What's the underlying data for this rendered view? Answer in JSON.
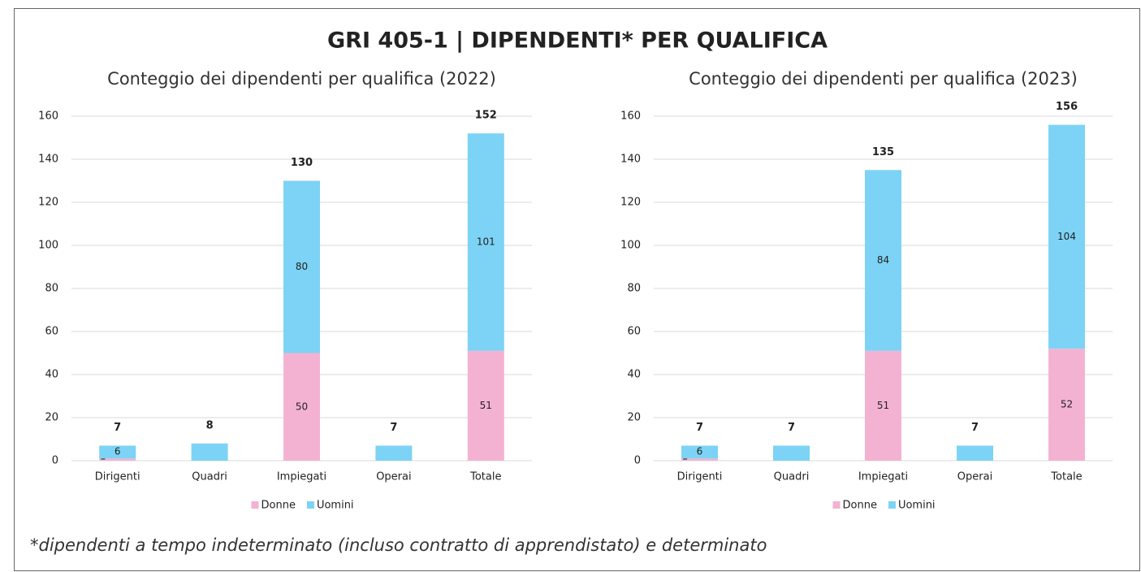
{
  "title": "GRI 405-1 | DIPENDENTI* PER QUALIFICA",
  "footnote": "*dipendenti a tempo indeterminato (incluso contratto di apprendistato) e determinato",
  "chart_data": [
    {
      "type": "bar",
      "stacked": true,
      "title": "Conteggio dei dipendenti per qualifica (2022)",
      "categories": [
        "Dirigenti",
        "Quadri",
        "Impiegati",
        "Operai",
        "Totale"
      ],
      "series": [
        {
          "name": "Donne",
          "color": "#f4b2d3",
          "values": [
            1,
            0,
            50,
            0,
            51
          ],
          "value_labels": [
            "1",
            null,
            "50",
            null,
            "51"
          ]
        },
        {
          "name": "Uomini",
          "color": "#7dd3f5",
          "values": [
            6,
            8,
            80,
            7,
            101
          ],
          "value_labels": [
            "6",
            null,
            "80",
            null,
            "101"
          ]
        }
      ],
      "totals": [
        7,
        8,
        130,
        7,
        152
      ],
      "ylim": [
        0,
        160
      ],
      "yticks": [
        0,
        20,
        40,
        60,
        80,
        100,
        120,
        140,
        160
      ],
      "grid": true,
      "legend": "bottom"
    },
    {
      "type": "bar",
      "stacked": true,
      "title": "Conteggio dei dipendenti per qualifica (2023)",
      "categories": [
        "Dirigenti",
        "Quadri",
        "Impiegati",
        "Operai",
        "Totale"
      ],
      "series": [
        {
          "name": "Donne",
          "color": "#f4b2d3",
          "values": [
            1,
            0,
            51,
            0,
            52
          ],
          "value_labels": [
            "1",
            null,
            "51",
            null,
            "52"
          ]
        },
        {
          "name": "Uomini",
          "color": "#7dd3f5",
          "values": [
            6,
            7,
            84,
            7,
            104
          ],
          "value_labels": [
            "6",
            null,
            "84",
            null,
            "104"
          ]
        }
      ],
      "totals": [
        7,
        7,
        135,
        7,
        156
      ],
      "ylim": [
        0,
        160
      ],
      "yticks": [
        0,
        20,
        40,
        60,
        80,
        100,
        120,
        140,
        160
      ],
      "grid": true,
      "legend": "bottom"
    }
  ]
}
